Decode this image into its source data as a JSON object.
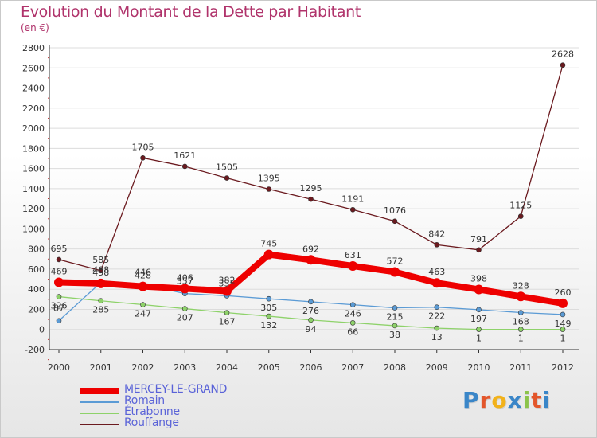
{
  "chart_data": {
    "type": "line",
    "title": "Evolution du Montant de la Dette par Habitant",
    "unit_label": "(en €)",
    "xlabel": "",
    "ylabel": "",
    "ylim": [
      -200,
      2800
    ],
    "y_ticks": [
      -200,
      0,
      200,
      400,
      600,
      800,
      1000,
      1200,
      1400,
      1600,
      1800,
      2000,
      2200,
      2400,
      2600,
      2800
    ],
    "categories": [
      "2000",
      "2001",
      "2002",
      "2003",
      "2004",
      "2005",
      "2006",
      "2007",
      "2008",
      "2009",
      "2010",
      "2011",
      "2012"
    ],
    "series": [
      {
        "name": "Rouffange",
        "color": "#6b1a1f",
        "values": [
          695,
          585,
          1705,
          1621,
          1505,
          1395,
          1295,
          1191,
          1076,
          842,
          791,
          1125,
          2628
        ],
        "labels": [
          "695",
          "585",
          "1705",
          "1621",
          "1505",
          "1395",
          "1295",
          "1191",
          "1076",
          "842",
          "791",
          "1125",
          "2628"
        ]
      },
      {
        "name": "Étrabonne",
        "color": "#8ed26a",
        "values": [
          326,
          285,
          247,
          207,
          167,
          132,
          94,
          66,
          38,
          13,
          1,
          1,
          1
        ],
        "labels": [
          "326",
          "285",
          "247",
          "207",
          "167",
          "132",
          "94",
          "66",
          "38",
          "13",
          "1",
          "1",
          "1"
        ]
      },
      {
        "name": "Romain",
        "color": "#5b9bd5",
        "values": [
          87,
          468,
          446,
          357,
          335,
          305,
          276,
          246,
          215,
          222,
          197,
          168,
          149
        ],
        "labels": [
          "87",
          "468",
          "446",
          "357",
          "335",
          "305",
          "276",
          "246",
          "215",
          "222",
          "197",
          "168",
          "149"
        ]
      },
      {
        "name": "MERCEY-LE-GRAND",
        "color": "#ee0000",
        "values": [
          469,
          458,
          428,
          406,
          382,
          745,
          692,
          631,
          572,
          463,
          398,
          328,
          260
        ],
        "labels": [
          "469",
          "458",
          "428",
          "406",
          "382",
          "745",
          "692",
          "631",
          "572",
          "463",
          "398",
          "328",
          "260"
        ]
      }
    ],
    "legend": [
      {
        "name": "MERCEY-LE-GRAND",
        "color": "#ee0000",
        "thick": true
      },
      {
        "name": "Romain",
        "color": "#5b9bd5",
        "thick": false
      },
      {
        "name": "Étrabonne",
        "color": "#8ed26a",
        "thick": false
      },
      {
        "name": "Rouffange",
        "color": "#6b1a1f",
        "thick": false
      }
    ]
  },
  "logo_text": "Proxiti"
}
